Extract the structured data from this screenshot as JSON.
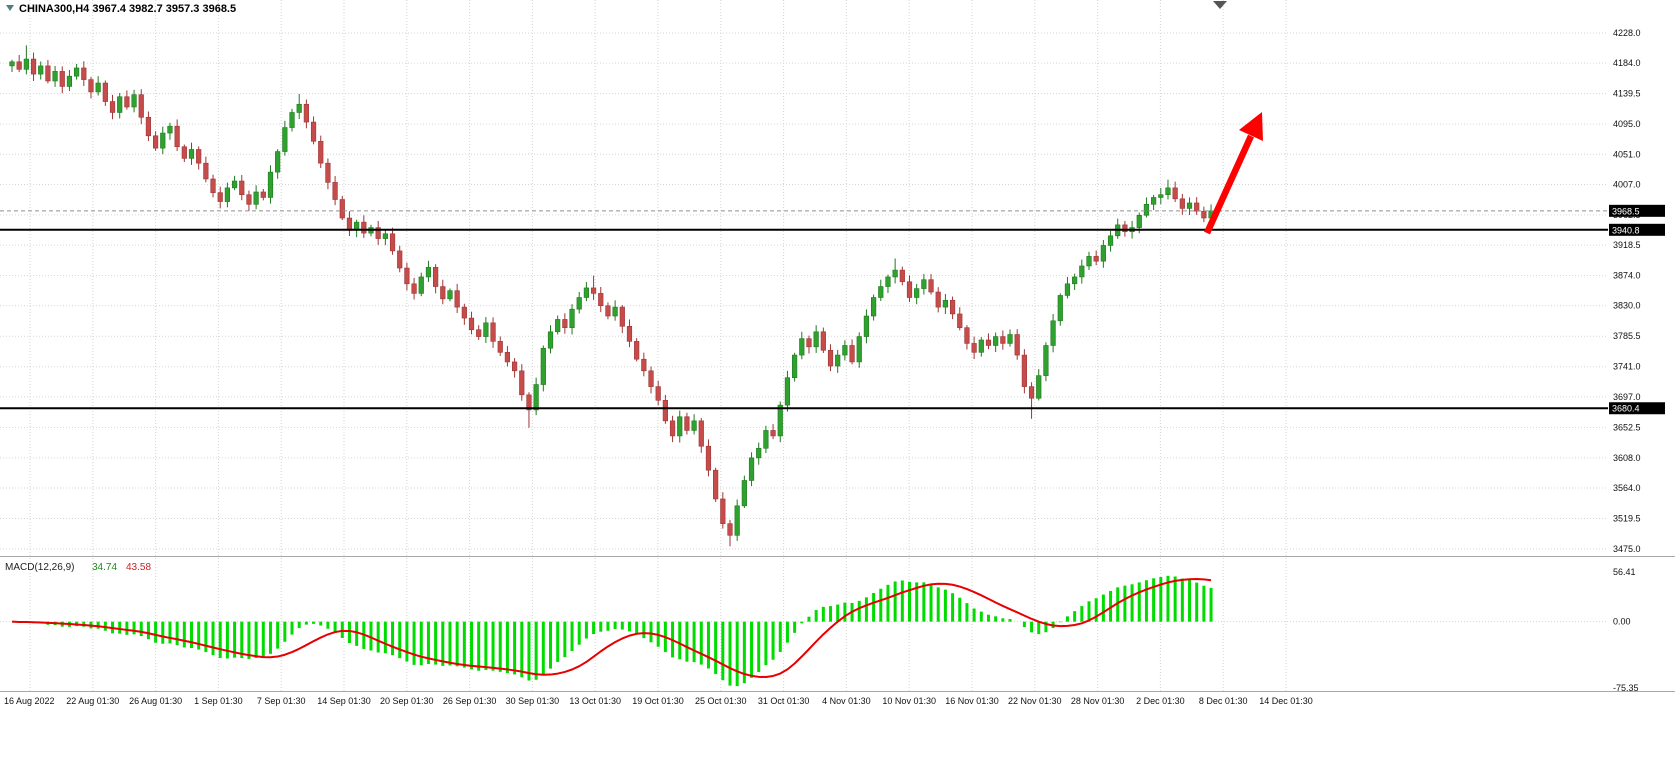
{
  "window": {
    "title": "CHINA300,H4 3967.4 3982.7 3957.3 3968.5"
  },
  "chart_data": {
    "type": "candlestick",
    "symbol": "CHINA300",
    "timeframe": "H4",
    "last_ohlc": {
      "open": 3967.4,
      "high": 3982.7,
      "low": 3957.3,
      "close": 3968.5
    },
    "price_axis": {
      "min": 3475.0,
      "max": 4228.0,
      "ticks": [
        4228.0,
        4184.0,
        4139.5,
        4095.0,
        4051.0,
        4007.0,
        3962.5,
        3918.5,
        3874.0,
        3830.0,
        3785.5,
        3741.0,
        3697.0,
        3652.5,
        3608.0,
        3564.0,
        3519.5,
        3475.0
      ]
    },
    "x_labels": [
      "16 Aug 2022",
      "22 Aug 01:30",
      "26 Aug 01:30",
      "1 Sep 01:30",
      "7 Sep 01:30",
      "14 Sep 01:30",
      "20 Sep 01:30",
      "26 Sep 01:30",
      "30 Sep 01:30",
      "13 Oct 01:30",
      "19 Oct 01:30",
      "25 Oct 01:30",
      "31 Oct 01:30",
      "4 Nov 01:30",
      "10 Nov 01:30",
      "16 Nov 01:30",
      "22 Nov 01:30",
      "28 Nov 01:30",
      "2 Dec 01:30",
      "8 Dec 01:30",
      "14 Dec 01:30"
    ],
    "closes": [
      4186,
      4175,
      4190,
      4168,
      4180,
      4158,
      4172,
      4150,
      4165,
      4177,
      4160,
      4142,
      4155,
      4128,
      4112,
      4135,
      4120,
      4138,
      4105,
      4078,
      4060,
      4082,
      4092,
      4062,
      4045,
      4058,
      4038,
      4015,
      3995,
      3982,
      4002,
      4012,
      3992,
      3978,
      3996,
      3988,
      4025,
      4055,
      4090,
      4112,
      4124,
      4098,
      4070,
      4038,
      4010,
      3985,
      3958,
      3940,
      3952,
      3936,
      3944,
      3928,
      3935,
      3910,
      3885,
      3862,
      3848,
      3872,
      3886,
      3858,
      3840,
      3852,
      3828,
      3812,
      3795,
      3785,
      3805,
      3778,
      3762,
      3748,
      3735,
      3700,
      3678,
      3715,
      3768,
      3792,
      3810,
      3798,
      3825,
      3842,
      3856,
      3848,
      3830,
      3815,
      3828,
      3800,
      3778,
      3752,
      3735,
      3712,
      3692,
      3662,
      3640,
      3668,
      3648,
      3662,
      3625,
      3590,
      3548,
      3512,
      3495,
      3538,
      3575,
      3608,
      3622,
      3648,
      3640,
      3685,
      3725,
      3758,
      3782,
      3770,
      3792,
      3765,
      3742,
      3758,
      3772,
      3748,
      3785,
      3815,
      3842,
      3858,
      3872,
      3882,
      3865,
      3842,
      3855,
      3868,
      3850,
      3828,
      3838,
      3818,
      3798,
      3775,
      3762,
      3780,
      3772,
      3785,
      3775,
      3788,
      3758,
      3712,
      3695,
      3728,
      3772,
      3808,
      3845,
      3862,
      3872,
      3888,
      3902,
      3895,
      3918,
      3932,
      3948,
      3938,
      3944,
      3962,
      3978,
      3988,
      3992,
      4002,
      3986,
      3972,
      3980,
      3968,
      3958,
      3968.5
    ],
    "wick_overrides": {
      "2": [
        4210,
        null
      ],
      "40": [
        4139,
        null
      ],
      "72": [
        null,
        3652
      ],
      "81": [
        3874,
        null
      ],
      "100": [
        null,
        3479
      ],
      "123": [
        3899,
        null
      ],
      "142": [
        null,
        3665
      ],
      "161": [
        4014,
        null
      ]
    },
    "hlines": [
      {
        "value": 3940.8,
        "label": "3940.8"
      },
      {
        "value": 3680.4,
        "label": "3680.4"
      }
    ],
    "current_price": {
      "value": 3968.5,
      "label": "3968.5"
    },
    "macd": {
      "label": "MACD(12,26,9)",
      "main_value_text": "34.74",
      "signal_value_text": "43.58",
      "params": [
        12,
        26,
        9
      ],
      "range": [
        -75.35,
        56.41
      ],
      "axis": [
        {
          "value": 56.41,
          "label": "56.41"
        },
        {
          "value": 0,
          "label": "0.00"
        },
        {
          "value": -75.35,
          "label": "-75.35"
        }
      ]
    },
    "colors": {
      "background": "#FFFFFF",
      "grid": "#D6D6D6",
      "bull": "#2FA12F",
      "bull_dark": "#1E7A1E",
      "bear": "#C64B4B",
      "bear_dark": "#9E3636",
      "macd_hist": "#00DB00",
      "macd_signal": "#E60000",
      "hline": "#000000",
      "badge_bg": "#000000",
      "badge_text": "#FFFFFF",
      "arrow": "#FF0000",
      "separator": "#A8A8A8",
      "bid_line": "#909090",
      "shift_marker": "#555555",
      "dropdown_icon": "#4F7F7F"
    }
  }
}
